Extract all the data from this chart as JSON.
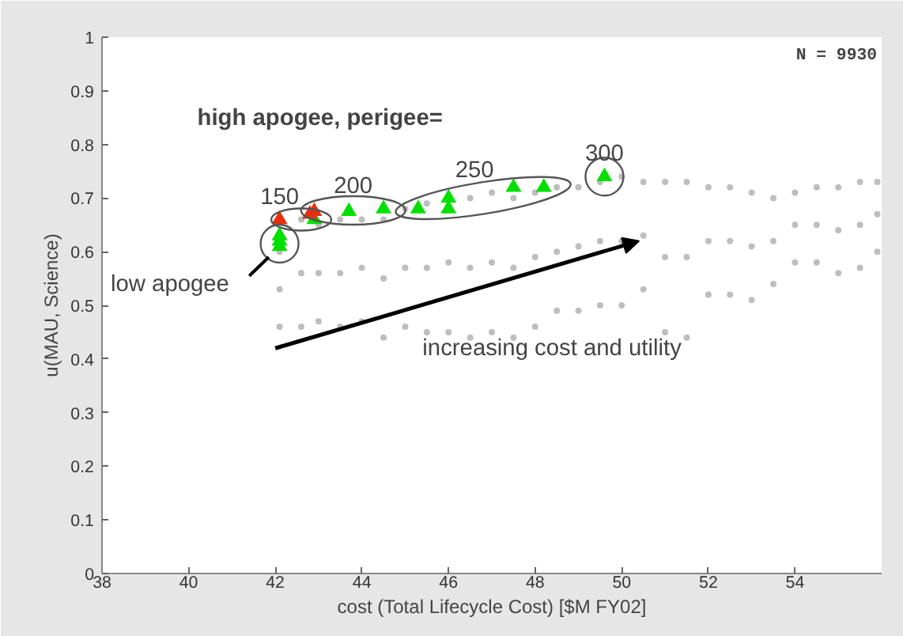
{
  "chart_data": {
    "type": "scatter",
    "xlabel": "cost (Total Lifecycle Cost) [$M FY02]",
    "ylabel": "u(MAU, Science)",
    "xlim": [
      38,
      56
    ],
    "ylim": [
      0,
      1
    ],
    "xticks": [
      38,
      40,
      42,
      44,
      46,
      48,
      50,
      52,
      54
    ],
    "yticks": [
      0,
      0.1,
      0.2,
      0.3,
      0.4,
      0.5,
      0.6,
      0.7,
      0.8,
      0.9,
      1
    ],
    "grid": false,
    "series": [
      {
        "color": "#bebebe",
        "marker": "circle",
        "x": [
          42.1,
          42.1,
          42.1,
          42.6,
          42.6,
          42.6,
          43.0,
          43.0,
          43.0,
          43.5,
          43.5,
          43.5,
          44.0,
          44.0,
          44.0,
          44.5,
          44.5,
          44.5,
          45.0,
          45.0,
          45.0,
          45.5,
          45.5,
          45.5,
          46.0,
          46.0,
          46.5,
          46.5,
          46.5,
          47.0,
          47.0,
          47.0,
          47.5,
          47.5,
          47.5,
          48.0,
          48.0,
          48.0,
          48.5,
          48.5,
          48.5,
          49.0,
          49.0,
          49.0,
          49.5,
          49.5,
          49.5,
          50.0,
          50.0,
          50.0,
          50.5,
          50.5,
          50.5,
          51.0,
          51.0,
          51.0,
          51.5,
          51.5,
          51.5,
          52.0,
          52.0,
          52.0,
          52.5,
          52.5,
          52.5,
          53.0,
          53.0,
          53.0,
          53.5,
          53.5,
          53.5,
          54.0,
          54.0,
          54.0,
          54.5,
          54.5,
          54.5,
          55.0,
          55.0,
          55.0,
          55.5,
          55.5,
          55.5,
          55.9,
          55.9,
          55.9
        ],
        "values": [
          0.46,
          0.53,
          0.6,
          0.46,
          0.56,
          0.66,
          0.47,
          0.56,
          0.65,
          0.46,
          0.56,
          0.66,
          0.47,
          0.57,
          0.66,
          0.44,
          0.55,
          0.66,
          0.46,
          0.57,
          0.68,
          0.45,
          0.57,
          0.69,
          0.45,
          0.58,
          0.44,
          0.57,
          0.7,
          0.45,
          0.58,
          0.71,
          0.44,
          0.57,
          0.7,
          0.46,
          0.59,
          0.71,
          0.49,
          0.6,
          0.72,
          0.49,
          0.61,
          0.72,
          0.5,
          0.62,
          0.73,
          0.5,
          0.62,
          0.74,
          0.53,
          0.63,
          0.73,
          0.45,
          0.59,
          0.73,
          0.44,
          0.59,
          0.73,
          0.52,
          0.62,
          0.72,
          0.52,
          0.62,
          0.72,
          0.51,
          0.61,
          0.71,
          0.54,
          0.62,
          0.7,
          0.58,
          0.65,
          0.71,
          0.58,
          0.65,
          0.72,
          0.56,
          0.64,
          0.72,
          0.57,
          0.65,
          0.73,
          0.6,
          0.67,
          0.73
        ]
      },
      {
        "color": "#00e000",
        "marker": "triangle",
        "x": [
          42.1,
          42.1,
          42.1,
          42.9,
          43.7,
          44.5,
          45.3,
          46.0,
          46.0,
          47.5,
          48.2,
          49.6
        ],
        "values": [
          0.61,
          0.62,
          0.63,
          0.66,
          0.675,
          0.68,
          0.68,
          0.7,
          0.68,
          0.72,
          0.72,
          0.74
        ]
      },
      {
        "color": "#e83010",
        "marker": "triangle",
        "x": [
          42.1,
          42.8,
          42.9
        ],
        "values": [
          0.66,
          0.67,
          0.675
        ]
      }
    ],
    "annotations": [
      "N = 9930",
      "high apogee, perigee=",
      {
        "text": "150",
        "x": 42.1,
        "y": 0.66
      },
      {
        "text": "200",
        "x": 43.8,
        "y": 0.68
      },
      {
        "text": "250",
        "x": 46.6,
        "y": 0.71
      },
      {
        "text": "300",
        "x": 49.6,
        "y": 0.74
      },
      "low apogee",
      "increasing cost and utility"
    ]
  }
}
